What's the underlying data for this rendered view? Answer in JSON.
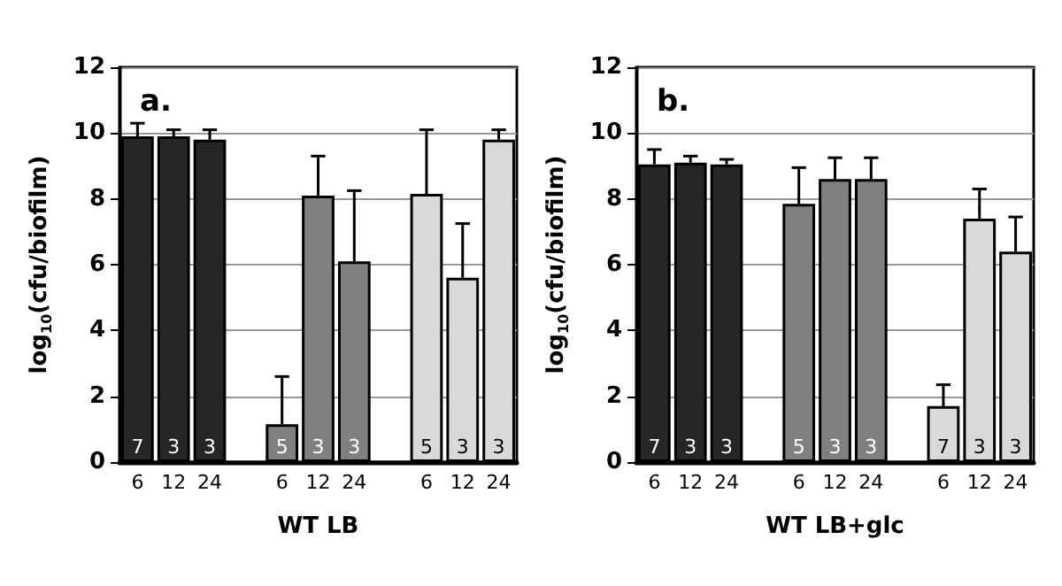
{
  "chart_data": [
    {
      "type": "bar",
      "title": "a.",
      "xlabel": "WT LB",
      "ylabel": "log$_{10}$(cfu/biofilm)",
      "stacked": true,
      "categories": [
        "6",
        "12",
        "24",
        null,
        "6",
        "12",
        "24",
        null,
        "6",
        "12",
        "24"
      ],
      "series": [
        {
          "color": "#262626",
          "values": [
            9.9,
            9.9,
            9.8,
            null,
            null,
            null,
            null,
            null,
            null,
            null,
            null
          ],
          "errors": [
            [
              9.9,
              10.3
            ],
            [
              9.9,
              10.1
            ],
            [
              9.8,
              10.1
            ],
            null,
            null,
            null,
            null,
            null,
            null,
            null,
            null
          ]
        },
        {
          "color": "#808080",
          "values": [
            null,
            null,
            null,
            null,
            1.15,
            8.1,
            6.1,
            null,
            null,
            null,
            null
          ],
          "errors": [
            null,
            null,
            null,
            null,
            [
              1.15,
              2.6
            ],
            [
              8.1,
              9.3
            ],
            [
              6.1,
              8.25
            ],
            null,
            null,
            null,
            null
          ]
        },
        {
          "color": "#d9d9d9",
          "values": [
            null,
            null,
            null,
            null,
            null,
            null,
            null,
            null,
            8.15,
            5.6,
            9.8
          ],
          "errors": [
            null,
            null,
            null,
            null,
            null,
            null,
            null,
            null,
            [
              8.15,
              10.1
            ],
            [
              5.6,
              7.25
            ],
            [
              9.8,
              10.1
            ]
          ]
        }
      ],
      "annotations": [
        "7",
        "3",
        "3",
        "5",
        "3",
        "3",
        "5",
        "3",
        "3"
      ],
      "ylim": [
        0,
        12
      ],
      "yticks": [
        0,
        2,
        4,
        6,
        8,
        10,
        12
      ],
      "grid": "y"
    },
    {
      "type": "bar",
      "title": "b.",
      "xlabel": "WT LB+glc",
      "ylabel": "log$_{10}$(cfu/biofilm)",
      "stacked": true,
      "categories": [
        "6",
        "12",
        "24",
        null,
        "6",
        "12",
        "24",
        null,
        "6",
        "12",
        "24"
      ],
      "series": [
        {
          "color": "#262626",
          "values": [
            9.05,
            9.1,
            9.05,
            null,
            null,
            null,
            null,
            null,
            null,
            null,
            null
          ],
          "errors": [
            [
              9.05,
              9.5
            ],
            [
              9.1,
              9.3
            ],
            [
              9.05,
              9.2
            ],
            null,
            null,
            null,
            null,
            null,
            null,
            null,
            null
          ]
        },
        {
          "color": "#808080",
          "values": [
            null,
            null,
            null,
            null,
            7.85,
            8.6,
            8.6,
            null,
            null,
            null,
            null
          ],
          "errors": [
            null,
            null,
            null,
            null,
            [
              7.85,
              8.95
            ],
            [
              8.6,
              9.25
            ],
            [
              8.6,
              9.25
            ],
            null,
            null,
            null,
            null
          ]
        },
        {
          "color": "#d9d9d9",
          "values": [
            null,
            null,
            null,
            null,
            null,
            null,
            null,
            null,
            1.7,
            7.4,
            6.4
          ],
          "errors": [
            null,
            null,
            null,
            null,
            null,
            null,
            null,
            null,
            [
              1.7,
              2.35
            ],
            [
              7.4,
              8.3
            ],
            [
              6.4,
              7.45
            ]
          ]
        }
      ],
      "annotations": [
        "7",
        "3",
        "3",
        "5",
        "3",
        "3",
        "7",
        "3",
        "3"
      ],
      "ylim": [
        0,
        12
      ],
      "yticks": [
        0,
        2,
        4,
        6,
        8,
        10,
        12
      ],
      "grid": "y"
    }
  ]
}
